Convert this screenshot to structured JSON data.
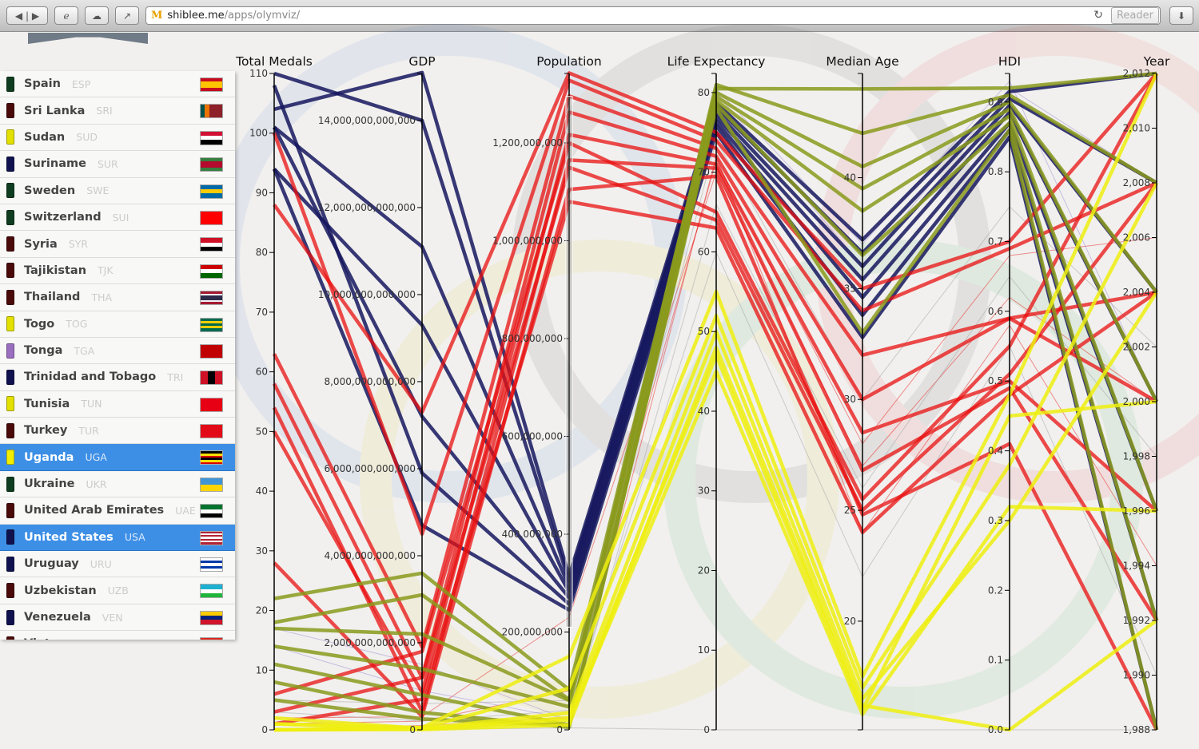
{
  "browser": {
    "host": "shiblee.me",
    "path": "/apps/olymviz/",
    "reader_label": "Reader"
  },
  "sidebar": {
    "countries": [
      {
        "name": "Spain",
        "code": "ESP",
        "color": "#0f3d1f",
        "flag": [
          "h",
          "#c60b1e",
          "#ffc400",
          "#ffc400",
          "#c60b1e"
        ]
      },
      {
        "name": "Sri Lanka",
        "code": "SRI",
        "color": "#4a0a0a",
        "flag": [
          "v",
          "#00534e",
          "#eb7400",
          "#8d2029",
          "#8d2029",
          "#8d2029"
        ]
      },
      {
        "name": "Sudan",
        "code": "SUD",
        "color": "#e3e000",
        "flag": [
          "h",
          "#d21034",
          "#ffffff",
          "#000000"
        ]
      },
      {
        "name": "Suriname",
        "code": "SUR",
        "color": "#10124f",
        "flag": [
          "h",
          "#377e3f",
          "#b40a2d",
          "#b40a2d",
          "#377e3f"
        ]
      },
      {
        "name": "Sweden",
        "code": "SWE",
        "color": "#0f3d1f",
        "flag": [
          "h",
          "#006aa7",
          "#fecc00",
          "#006aa7"
        ]
      },
      {
        "name": "Switzerland",
        "code": "SUI",
        "color": "#0f3d1f",
        "flag": [
          "h",
          "#ff0000"
        ]
      },
      {
        "name": "Syria",
        "code": "SYR",
        "color": "#4a0a0a",
        "flag": [
          "h",
          "#ce1126",
          "#ffffff",
          "#000000"
        ]
      },
      {
        "name": "Tajikistan",
        "code": "TJK",
        "color": "#4a0a0a",
        "flag": [
          "h",
          "#cc0000",
          "#ffffff",
          "#006600"
        ]
      },
      {
        "name": "Thailand",
        "code": "THA",
        "color": "#4a0a0a",
        "flag": [
          "h",
          "#a51931",
          "#f4f5f8",
          "#2d2a4a",
          "#2d2a4a",
          "#f4f5f8",
          "#a51931"
        ]
      },
      {
        "name": "Togo",
        "code": "TOG",
        "color": "#e3e000",
        "flag": [
          "h",
          "#006a4e",
          "#ffce00",
          "#006a4e",
          "#ffce00",
          "#006a4e"
        ]
      },
      {
        "name": "Tonga",
        "code": "TGA",
        "color": "#9b6fc0",
        "flag": [
          "h",
          "#c10000"
        ]
      },
      {
        "name": "Trinidad and Tobago",
        "code": "TRI",
        "color": "#10124f",
        "flag": [
          "v",
          "#ce1126",
          "#000000",
          "#ce1126"
        ]
      },
      {
        "name": "Tunisia",
        "code": "TUN",
        "color": "#e3e000",
        "flag": [
          "h",
          "#e70013"
        ]
      },
      {
        "name": "Turkey",
        "code": "TUR",
        "color": "#4a0a0a",
        "flag": [
          "h",
          "#e30a17"
        ]
      },
      {
        "name": "Uganda",
        "code": "UGA",
        "color": "#f2ee00",
        "flag": [
          "h",
          "#000000",
          "#fcdc04",
          "#d90000",
          "#000000",
          "#fcdc04",
          "#d90000"
        ],
        "selected": true
      },
      {
        "name": "Ukraine",
        "code": "UKR",
        "color": "#0f3d1f",
        "flag": [
          "h",
          "#3f95d6",
          "#ffd500"
        ]
      },
      {
        "name": "United Arab Emirates",
        "code": "UAE",
        "color": "#4a0a0a",
        "flag": [
          "h",
          "#00732f",
          "#ffffff",
          "#000000"
        ]
      },
      {
        "name": "United States",
        "code": "USA",
        "color": "#10124f",
        "flag": [
          "h",
          "#b22234",
          "#ffffff",
          "#b22234",
          "#ffffff",
          "#b22234",
          "#ffffff",
          "#b22234"
        ],
        "selected": true
      },
      {
        "name": "Uruguay",
        "code": "URU",
        "color": "#10124f",
        "flag": [
          "h",
          "#ffffff",
          "#0038a8",
          "#ffffff",
          "#0038a8",
          "#ffffff"
        ]
      },
      {
        "name": "Uzbekistan",
        "code": "UZB",
        "color": "#4a0a0a",
        "flag": [
          "h",
          "#1eb0d0",
          "#ffffff",
          "#1eb53a"
        ]
      },
      {
        "name": "Venezuela",
        "code": "VEN",
        "color": "#10124f",
        "flag": [
          "h",
          "#ffcc00",
          "#00247d",
          "#cf142b"
        ]
      },
      {
        "name": "Vietnam",
        "code": "VIE",
        "color": "#4a0a0a",
        "flag": [
          "h",
          "#da251d"
        ]
      }
    ]
  },
  "chart_data": {
    "type": "parallel-coordinates",
    "axes": [
      {
        "name": "Total Medals",
        "domain": [
          0,
          110
        ],
        "ticks": [
          0,
          10,
          20,
          30,
          40,
          50,
          60,
          70,
          80,
          90,
          100,
          110
        ],
        "labels": [
          "0",
          "10",
          "20",
          "30",
          "40",
          "50",
          "60",
          "70",
          "80",
          "90",
          "100",
          "110"
        ]
      },
      {
        "name": "GDP",
        "unit": "trillion",
        "domain": [
          0,
          15.08
        ],
        "ticks": [
          0,
          2,
          4,
          6,
          8,
          10,
          12,
          14
        ],
        "labels": [
          "0",
          "2,000,000,000,000",
          "4,000,000,000,000",
          "6,000,000,000,000",
          "8,000,000,000,000",
          "10,000,000,000,000",
          "12,000,000,000,000",
          "14,000,000,000,000"
        ]
      },
      {
        "name": "Population",
        "unit": "million",
        "domain": [
          0,
          1342
        ],
        "ticks": [
          0,
          200,
          400,
          600,
          800,
          1000,
          1200
        ],
        "labels": [
          "0",
          "200,000,000",
          "400,000,000",
          "600,000,000",
          "800,000,000",
          "1,000,000,000",
          "1,200,000,000"
        ],
        "brush": [
          210,
          1295
        ]
      },
      {
        "name": "Life Expectancy",
        "domain": [
          0,
          82.4
        ],
        "ticks": [
          0,
          10,
          20,
          30,
          40,
          50,
          60,
          70,
          80
        ],
        "labels": [
          "0",
          "10",
          "20",
          "30",
          "40",
          "50",
          "60",
          "70",
          "80"
        ]
      },
      {
        "name": "Median Age",
        "domain": [
          15.1,
          44.7
        ],
        "ticks": [
          20,
          25,
          30,
          35,
          40
        ],
        "labels": [
          "20",
          "25",
          "30",
          "35",
          "40"
        ]
      },
      {
        "name": "HDI",
        "domain": [
          0,
          0.941
        ],
        "ticks": [
          0,
          0.1,
          0.2,
          0.3,
          0.4,
          0.5,
          0.6,
          0.7,
          0.8,
          0.9
        ],
        "labels": [
          "0.0",
          "0.1",
          "0.2",
          "0.3",
          "0.4",
          "0.5",
          "0.6",
          "0.7",
          "0.8",
          "0.9"
        ]
      },
      {
        "name": "Year",
        "domain": [
          1988,
          2012
        ],
        "ticks": [
          1988,
          1990,
          1992,
          1994,
          1996,
          1998,
          2000,
          2002,
          2004,
          2006,
          2008,
          2010,
          2012
        ],
        "labels": [
          "1,988",
          "1,990",
          "1,992",
          "1,994",
          "1,996",
          "1,998",
          "2,000",
          "2,002",
          "2,004",
          "2,006",
          "2,008",
          "2,010",
          "2,012"
        ]
      }
    ],
    "colors": {
      "americas": "#15165e",
      "asia": "#e81010",
      "europe": "#8a9a1c",
      "africa": "#eeee10",
      "oceania": "#9a7fd0",
      "other": "#999999"
    },
    "series": [
      {
        "group": "americas",
        "thick": true,
        "values": [
          104,
          15.1,
          314,
          78.7,
          37.2,
          0.915,
          2012
        ]
      },
      {
        "group": "americas",
        "thick": true,
        "values": [
          110,
          14.0,
          304,
          78.2,
          36.6,
          0.905,
          2008
        ]
      },
      {
        "group": "americas",
        "thick": true,
        "values": [
          101,
          11.1,
          293,
          77.6,
          36.0,
          0.895,
          2004
        ]
      },
      {
        "group": "americas",
        "thick": true,
        "values": [
          94,
          9.3,
          282,
          77.0,
          35.4,
          0.885,
          2000
        ]
      },
      {
        "group": "americas",
        "thick": true,
        "values": [
          101,
          7.2,
          270,
          76.4,
          34.6,
          0.87,
          1996
        ]
      },
      {
        "group": "americas",
        "thick": true,
        "values": [
          108,
          5.9,
          257,
          75.8,
          33.8,
          0.86,
          1992
        ]
      },
      {
        "group": "americas",
        "thick": true,
        "values": [
          94,
          4.7,
          245,
          75.0,
          32.8,
          0.85,
          1988
        ]
      },
      {
        "group": "asia",
        "thick": true,
        "values": [
          88,
          7.3,
          1343,
          75.0,
          35.0,
          0.7,
          2012
        ]
      },
      {
        "group": "asia",
        "thick": true,
        "values": [
          100,
          4.5,
          1328,
          74.0,
          34.0,
          0.69,
          2008
        ]
      },
      {
        "group": "asia",
        "thick": true,
        "values": [
          63,
          1.9,
          1296,
          73.0,
          32.0,
          0.59,
          2004
        ]
      },
      {
        "group": "asia",
        "thick": true,
        "values": [
          58,
          1.2,
          1263,
          72.0,
          30.0,
          0.59,
          2000
        ]
      },
      {
        "group": "asia",
        "thick": true,
        "values": [
          50,
          0.86,
          1217,
          71.0,
          28.5,
          0.5,
          1996
        ]
      },
      {
        "group": "asia",
        "thick": true,
        "values": [
          54,
          0.42,
          1165,
          70.5,
          26.8,
          0.49,
          1992
        ]
      },
      {
        "group": "asia",
        "thick": true,
        "values": [
          28,
          0.31,
          1105,
          69.5,
          24.8,
          0.41,
          1988
        ]
      },
      {
        "group": "asia",
        "thick": true,
        "values": [
          6,
          1.8,
          1200,
          65.0,
          25.5,
          0.55,
          2012
        ]
      },
      {
        "group": "asia",
        "thick": true,
        "values": [
          3,
          1.2,
          1150,
          64.0,
          25.0,
          0.51,
          2008
        ]
      },
      {
        "group": "asia",
        "thick": true,
        "values": [
          1,
          0.7,
          1080,
          63.0,
          24.0,
          0.48,
          2004
        ]
      },
      {
        "group": "asia",
        "thick": false,
        "values": [
          2,
          0.3,
          230,
          70.0,
          27,
          0.62,
          2000
        ]
      },
      {
        "group": "asia",
        "thick": false,
        "values": [
          1,
          0.2,
          80,
          71.5,
          28,
          0.68,
          2006
        ]
      },
      {
        "group": "asia",
        "thick": false,
        "values": [
          0,
          0.1,
          25,
          72.0,
          24,
          0.58,
          1994
        ]
      },
      {
        "group": "europe",
        "thick": true,
        "values": [
          22,
          3.6,
          82,
          80.5,
          44.0,
          0.92,
          2012
        ]
      },
      {
        "group": "europe",
        "thick": true,
        "values": [
          18,
          3.1,
          62,
          81.0,
          42.0,
          0.91,
          2008
        ]
      },
      {
        "group": "europe",
        "thick": true,
        "values": [
          17,
          2.2,
          60,
          80.0,
          40.5,
          0.9,
          2004
        ]
      },
      {
        "group": "europe",
        "thick": true,
        "values": [
          14,
          1.4,
          47,
          79.5,
          39.5,
          0.89,
          2000
        ]
      },
      {
        "group": "europe",
        "thick": true,
        "values": [
          11,
          0.8,
          10,
          79.0,
          38.5,
          0.88,
          1996
        ]
      },
      {
        "group": "europe",
        "thick": true,
        "values": [
          8,
          0.4,
          5,
          78.5,
          36.5,
          0.87,
          1992
        ]
      },
      {
        "group": "europe",
        "thick": true,
        "values": [
          5,
          0.25,
          9,
          78.0,
          33.0,
          0.86,
          1988
        ]
      },
      {
        "group": "africa",
        "thick": true,
        "values": [
          1,
          0.05,
          150,
          55.0,
          17.5,
          0.48,
          2012
        ]
      },
      {
        "group": "africa",
        "thick": true,
        "values": [
          0,
          0.04,
          85,
          52.0,
          17.0,
          0.38,
          2008
        ]
      },
      {
        "group": "africa",
        "thick": true,
        "values": [
          2,
          0.03,
          35,
          50.0,
          16.5,
          0.3,
          2004
        ]
      },
      {
        "group": "africa",
        "thick": true,
        "values": [
          0,
          0.02,
          25,
          47.0,
          16.0,
          0.45,
          2000
        ]
      },
      {
        "group": "africa",
        "thick": true,
        "values": [
          1,
          0.01,
          20,
          45.0,
          15.8,
          0.32,
          1996
        ]
      },
      {
        "group": "africa",
        "thick": true,
        "values": [
          0,
          0.01,
          10,
          48.0,
          16.2,
          0.0,
          1992
        ]
      },
      {
        "group": "oceania",
        "thick": false,
        "values": [
          14,
          0.9,
          22,
          80.5,
          37,
          0.93,
          2000
        ]
      },
      {
        "group": "oceania",
        "thick": false,
        "values": [
          17,
          1.5,
          20,
          80.0,
          36,
          0.92,
          2008
        ]
      },
      {
        "group": "other",
        "thick": false,
        "values": [
          3,
          0.2,
          40,
          60.0,
          22,
          0.55,
          1990
        ]
      },
      {
        "group": "other",
        "thick": false,
        "values": [
          0,
          0.05,
          12,
          66.0,
          26,
          0.65,
          1998
        ]
      },
      {
        "group": "other",
        "thick": false,
        "values": [
          5,
          0.6,
          60,
          74.0,
          30,
          0.75,
          2002
        ]
      },
      {
        "group": "other",
        "thick": false,
        "values": [
          0,
          0.01,
          4,
          0,
          15.1,
          0,
          1988
        ]
      }
    ]
  }
}
